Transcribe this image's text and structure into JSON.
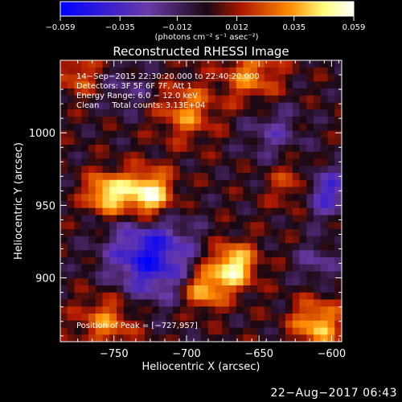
{
  "chart_data": {
    "type": "heatmap",
    "title": "Reconstructed RHESSI Image",
    "xlabel": "Heliocentric X (arcsec)",
    "ylabel": "Heliocentric Y (arcsec)",
    "xlim": [
      -787,
      -593
    ],
    "ylim": [
      856,
      1050
    ],
    "xticks": [
      -750,
      -700,
      -650,
      -600
    ],
    "xtick_labels": [
      "−750",
      "−700",
      "−650",
      "−600"
    ],
    "yticks": [
      900,
      950,
      1000
    ],
    "ytick_labels": [
      "900",
      "950",
      "1000"
    ],
    "colorbar": {
      "range": [
        -0.059,
        0.059
      ],
      "ticks": [
        -0.059,
        -0.035,
        -0.012,
        0.012,
        0.035,
        0.059
      ],
      "tick_labels": [
        "−0.059",
        "−0.035",
        "−0.012",
        "0.012",
        "0.035",
        "0.059"
      ],
      "units_label": "(photons cm⁻² s⁻¹ asec⁻²)"
    },
    "annotations": [
      "14−Sep−2015 22:30:20.000 to 22:40:20.000",
      "Detectors: 3F 5F 6F 7F, Att 1",
      "Energy Range: 6.0 − 12.0 keV",
      "Clean     Total counts: 3.13E+04"
    ],
    "peak_label": "Position of Peak = [−727,957]",
    "grid": false,
    "sources": [
      {
        "x": -727,
        "y": 957,
        "amplitude": 0.059,
        "sigma": 12
      },
      {
        "x": -755,
        "y": 958,
        "amplitude": 0.048,
        "sigma": 10
      },
      {
        "x": -668,
        "y": 908,
        "amplitude": 0.052,
        "sigma": 11
      },
      {
        "x": -688,
        "y": 892,
        "amplitude": 0.04,
        "sigma": 10
      },
      {
        "x": -610,
        "y": 868,
        "amplitude": 0.04,
        "sigma": 12
      },
      {
        "x": -700,
        "y": 1015,
        "amplitude": 0.03,
        "sigma": 14
      },
      {
        "x": -655,
        "y": 1040,
        "amplitude": 0.03,
        "sigma": 14
      },
      {
        "x": -755,
        "y": 870,
        "amplitude": 0.03,
        "sigma": 14
      },
      {
        "x": -625,
        "y": 965,
        "amplitude": 0.025,
        "sigma": 12
      },
      {
        "x": -775,
        "y": 1040,
        "amplitude": 0.025,
        "sigma": 10
      },
      {
        "x": -725,
        "y": 915,
        "amplitude": -0.05,
        "sigma": 20
      },
      {
        "x": -605,
        "y": 960,
        "amplitude": -0.04,
        "sigma": 12
      },
      {
        "x": -640,
        "y": 1000,
        "amplitude": -0.02,
        "sigma": 14
      },
      {
        "x": -610,
        "y": 910,
        "amplitude": -0.02,
        "sigma": 10
      },
      {
        "x": -740,
        "y": 1030,
        "amplitude": -0.015,
        "sigma": 12
      }
    ]
  },
  "footer": {
    "timestamp": "22−Aug−2017 06:43"
  },
  "colors": {
    "background": "#000000",
    "foreground": "#ffffff",
    "colormap": [
      "#0000ff",
      "#6a3aa6",
      "#1a0812",
      "#b01800",
      "#ff8a00",
      "#ffff80",
      "#ffffff"
    ]
  }
}
